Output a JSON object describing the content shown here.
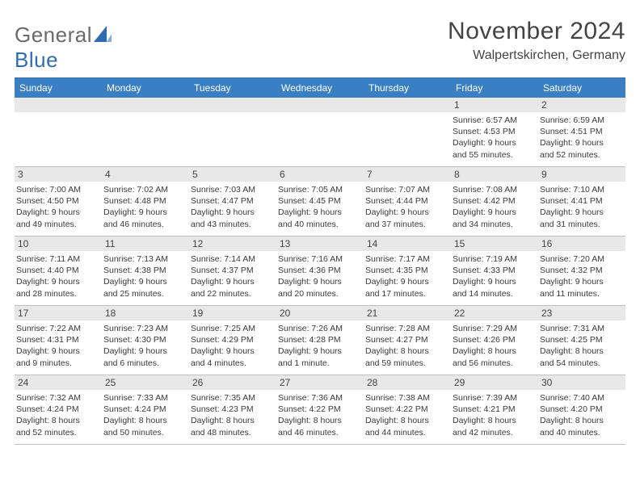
{
  "brand": {
    "part1": "General",
    "part2": "Blue",
    "accent_color": "#2f6db3",
    "text_color": "#6a6a6a"
  },
  "title": "November 2024",
  "subtitle": "Walpertskirchen, Germany",
  "header_bg": "#3a7fc4",
  "header_fg": "#ffffff",
  "daynum_bg": "#e8e8e8",
  "rule_color": "#bfbfbf",
  "weekdays": [
    "Sunday",
    "Monday",
    "Tuesday",
    "Wednesday",
    "Thursday",
    "Friday",
    "Saturday"
  ],
  "rows": [
    [
      null,
      null,
      null,
      null,
      null,
      {
        "n": 1,
        "sunrise": "6:57 AM",
        "sunset": "4:53 PM",
        "dl1": "Daylight: 9 hours",
        "dl2": "and 55 minutes."
      },
      {
        "n": 2,
        "sunrise": "6:59 AM",
        "sunset": "4:51 PM",
        "dl1": "Daylight: 9 hours",
        "dl2": "and 52 minutes."
      }
    ],
    [
      {
        "n": 3,
        "sunrise": "7:00 AM",
        "sunset": "4:50 PM",
        "dl1": "Daylight: 9 hours",
        "dl2": "and 49 minutes."
      },
      {
        "n": 4,
        "sunrise": "7:02 AM",
        "sunset": "4:48 PM",
        "dl1": "Daylight: 9 hours",
        "dl2": "and 46 minutes."
      },
      {
        "n": 5,
        "sunrise": "7:03 AM",
        "sunset": "4:47 PM",
        "dl1": "Daylight: 9 hours",
        "dl2": "and 43 minutes."
      },
      {
        "n": 6,
        "sunrise": "7:05 AM",
        "sunset": "4:45 PM",
        "dl1": "Daylight: 9 hours",
        "dl2": "and 40 minutes."
      },
      {
        "n": 7,
        "sunrise": "7:07 AM",
        "sunset": "4:44 PM",
        "dl1": "Daylight: 9 hours",
        "dl2": "and 37 minutes."
      },
      {
        "n": 8,
        "sunrise": "7:08 AM",
        "sunset": "4:42 PM",
        "dl1": "Daylight: 9 hours",
        "dl2": "and 34 minutes."
      },
      {
        "n": 9,
        "sunrise": "7:10 AM",
        "sunset": "4:41 PM",
        "dl1": "Daylight: 9 hours",
        "dl2": "and 31 minutes."
      }
    ],
    [
      {
        "n": 10,
        "sunrise": "7:11 AM",
        "sunset": "4:40 PM",
        "dl1": "Daylight: 9 hours",
        "dl2": "and 28 minutes."
      },
      {
        "n": 11,
        "sunrise": "7:13 AM",
        "sunset": "4:38 PM",
        "dl1": "Daylight: 9 hours",
        "dl2": "and 25 minutes."
      },
      {
        "n": 12,
        "sunrise": "7:14 AM",
        "sunset": "4:37 PM",
        "dl1": "Daylight: 9 hours",
        "dl2": "and 22 minutes."
      },
      {
        "n": 13,
        "sunrise": "7:16 AM",
        "sunset": "4:36 PM",
        "dl1": "Daylight: 9 hours",
        "dl2": "and 20 minutes."
      },
      {
        "n": 14,
        "sunrise": "7:17 AM",
        "sunset": "4:35 PM",
        "dl1": "Daylight: 9 hours",
        "dl2": "and 17 minutes."
      },
      {
        "n": 15,
        "sunrise": "7:19 AM",
        "sunset": "4:33 PM",
        "dl1": "Daylight: 9 hours",
        "dl2": "and 14 minutes."
      },
      {
        "n": 16,
        "sunrise": "7:20 AM",
        "sunset": "4:32 PM",
        "dl1": "Daylight: 9 hours",
        "dl2": "and 11 minutes."
      }
    ],
    [
      {
        "n": 17,
        "sunrise": "7:22 AM",
        "sunset": "4:31 PM",
        "dl1": "Daylight: 9 hours",
        "dl2": "and 9 minutes."
      },
      {
        "n": 18,
        "sunrise": "7:23 AM",
        "sunset": "4:30 PM",
        "dl1": "Daylight: 9 hours",
        "dl2": "and 6 minutes."
      },
      {
        "n": 19,
        "sunrise": "7:25 AM",
        "sunset": "4:29 PM",
        "dl1": "Daylight: 9 hours",
        "dl2": "and 4 minutes."
      },
      {
        "n": 20,
        "sunrise": "7:26 AM",
        "sunset": "4:28 PM",
        "dl1": "Daylight: 9 hours",
        "dl2": "and 1 minute."
      },
      {
        "n": 21,
        "sunrise": "7:28 AM",
        "sunset": "4:27 PM",
        "dl1": "Daylight: 8 hours",
        "dl2": "and 59 minutes."
      },
      {
        "n": 22,
        "sunrise": "7:29 AM",
        "sunset": "4:26 PM",
        "dl1": "Daylight: 8 hours",
        "dl2": "and 56 minutes."
      },
      {
        "n": 23,
        "sunrise": "7:31 AM",
        "sunset": "4:25 PM",
        "dl1": "Daylight: 8 hours",
        "dl2": "and 54 minutes."
      }
    ],
    [
      {
        "n": 24,
        "sunrise": "7:32 AM",
        "sunset": "4:24 PM",
        "dl1": "Daylight: 8 hours",
        "dl2": "and 52 minutes."
      },
      {
        "n": 25,
        "sunrise": "7:33 AM",
        "sunset": "4:24 PM",
        "dl1": "Daylight: 8 hours",
        "dl2": "and 50 minutes."
      },
      {
        "n": 26,
        "sunrise": "7:35 AM",
        "sunset": "4:23 PM",
        "dl1": "Daylight: 8 hours",
        "dl2": "and 48 minutes."
      },
      {
        "n": 27,
        "sunrise": "7:36 AM",
        "sunset": "4:22 PM",
        "dl1": "Daylight: 8 hours",
        "dl2": "and 46 minutes."
      },
      {
        "n": 28,
        "sunrise": "7:38 AM",
        "sunset": "4:22 PM",
        "dl1": "Daylight: 8 hours",
        "dl2": "and 44 minutes."
      },
      {
        "n": 29,
        "sunrise": "7:39 AM",
        "sunset": "4:21 PM",
        "dl1": "Daylight: 8 hours",
        "dl2": "and 42 minutes."
      },
      {
        "n": 30,
        "sunrise": "7:40 AM",
        "sunset": "4:20 PM",
        "dl1": "Daylight: 8 hours",
        "dl2": "and 40 minutes."
      }
    ]
  ]
}
